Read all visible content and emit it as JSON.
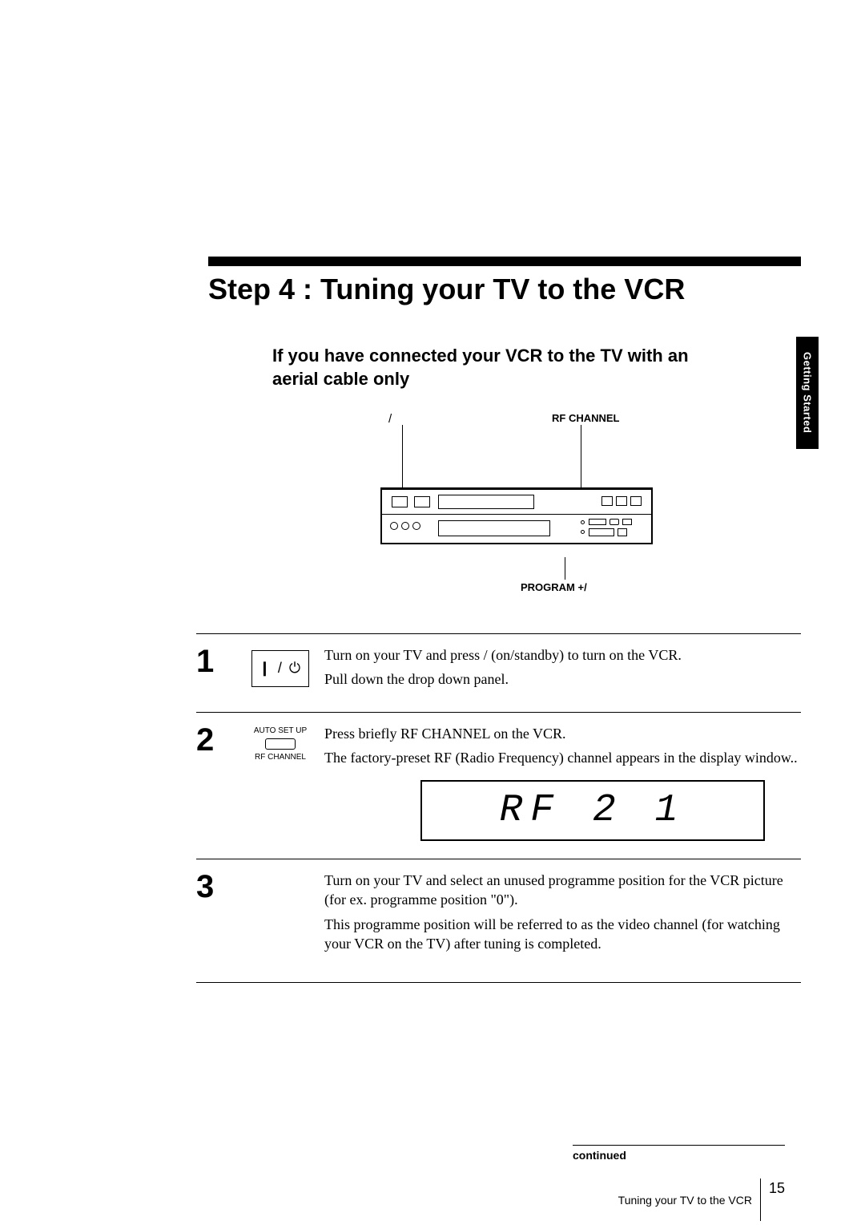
{
  "title": "Step 4 : Tuning your TV to the VCR",
  "subtitle": "If you have connected your VCR to the TV with an aerial cable only",
  "side_tab": "Getting Started",
  "diagram": {
    "label_power": "/",
    "label_rf": "RF CHANNEL",
    "label_program": "PROGRAM +/"
  },
  "steps": [
    {
      "num": "1",
      "icon_label_top": "",
      "icon_power_glyph": "❙ / ⏻",
      "text1": "Turn on your TV and press   /    (on/standby)  to turn on the VCR.",
      "text2": "Pull down the drop down panel."
    },
    {
      "num": "2",
      "icon_label_top": "AUTO SET UP",
      "icon_label_bottom": "RF  CHANNEL",
      "text1": "Press briefly RF CHANNEL on the VCR.",
      "text2": "The factory-preset RF (Radio Frequency) channel appears in the display window..",
      "rf_display": "RF 2 1"
    },
    {
      "num": "3",
      "text1": "Turn on your TV and select an unused programme position for the VCR picture (for ex. programme position \"0\").",
      "text2": "This programme position will be referred to as the video channel (for watching your VCR on the TV) after tuning is completed."
    }
  ],
  "continued": "continued",
  "footer_title": "Tuning your TV to the VCR",
  "page_number": "15",
  "colors": {
    "bg": "#ffffff",
    "fg": "#000000"
  }
}
